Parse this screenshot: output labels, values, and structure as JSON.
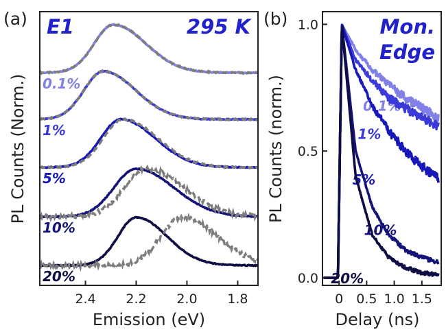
{
  "panels": {
    "a_label": "(a)",
    "b_label": "(b)"
  },
  "colors": {
    "c01": "#8080e6",
    "c1": "#3a3ad8",
    "c5": "#1818b8",
    "c10": "#141478",
    "c20": "#0e0e45",
    "ref": "#7d7d7d",
    "header": "#2222cc"
  },
  "chart_data": [
    {
      "type": "line",
      "panel": "(a)",
      "sample": "E1",
      "temperature": "295 K",
      "xlabel": "Emission (eV)",
      "ylabel": "PL Counts (Norm.)",
      "x_reversed": true,
      "xlim": [
        2.58,
        1.72
      ],
      "x_ticks": [
        "2.4",
        "2.2",
        "2.0",
        "1.8"
      ],
      "y_ticks": false,
      "series": [
        {
          "name": "0.1%",
          "offset": 4,
          "peak_eV": 2.29,
          "width_eV": 0.095,
          "reference_peak_eV": 2.29
        },
        {
          "name": "1%",
          "offset": 3,
          "peak_eV": 2.33,
          "width_eV": 0.095,
          "reference_peak_eV": 2.33
        },
        {
          "name": "5%",
          "offset": 2,
          "peak_eV": 2.26,
          "width_eV": 0.1,
          "reference_peak_eV": 2.25
        },
        {
          "name": "10%",
          "offset": 1,
          "peak_eV": 2.2,
          "width_eV": 0.11,
          "reference_peak_eV": 2.16
        },
        {
          "name": "20%",
          "offset": 0,
          "peak_eV": 2.2,
          "width_eV": 0.09,
          "reference_peak_eV": 2.02
        }
      ]
    },
    {
      "type": "line",
      "panel": "(b)",
      "title": "Mon. Edge",
      "xlabel": "Delay (ns)",
      "ylabel": "PL Counts (norm.)",
      "xlim": [
        -0.3,
        1.85
      ],
      "ylim": [
        -0.03,
        1.05
      ],
      "x_ticks": [
        "0",
        "0.5",
        "1.0",
        "1.5"
      ],
      "y_ticks": [
        "0.0",
        "0.5",
        "1.0"
      ],
      "series": [
        {
          "name": "0.1%",
          "x": [
            0.05,
            0.3,
            0.6,
            0.9,
            1.2,
            1.5,
            1.8
          ],
          "y": [
            1.0,
            0.9,
            0.82,
            0.76,
            0.71,
            0.67,
            0.63
          ]
        },
        {
          "name": "1%",
          "x": [
            0.05,
            0.3,
            0.6,
            0.9,
            1.2,
            1.5,
            1.8
          ],
          "y": [
            1.0,
            0.86,
            0.78,
            0.71,
            0.67,
            0.63,
            0.6
          ]
        },
        {
          "name": "5%",
          "x": [
            0.05,
            0.3,
            0.6,
            0.9,
            1.2,
            1.5,
            1.8
          ],
          "y": [
            1.0,
            0.82,
            0.68,
            0.58,
            0.5,
            0.44,
            0.39
          ]
        },
        {
          "name": "10%",
          "x": [
            0.05,
            0.3,
            0.6,
            0.9,
            1.2,
            1.5,
            1.8
          ],
          "y": [
            1.0,
            0.5,
            0.28,
            0.17,
            0.11,
            0.08,
            0.06
          ]
        },
        {
          "name": "20%",
          "x": [
            0.05,
            0.3,
            0.6,
            0.9,
            1.2,
            1.5,
            1.8
          ],
          "y": [
            1.0,
            0.4,
            0.17,
            0.08,
            0.04,
            0.02,
            0.01
          ]
        }
      ]
    }
  ]
}
